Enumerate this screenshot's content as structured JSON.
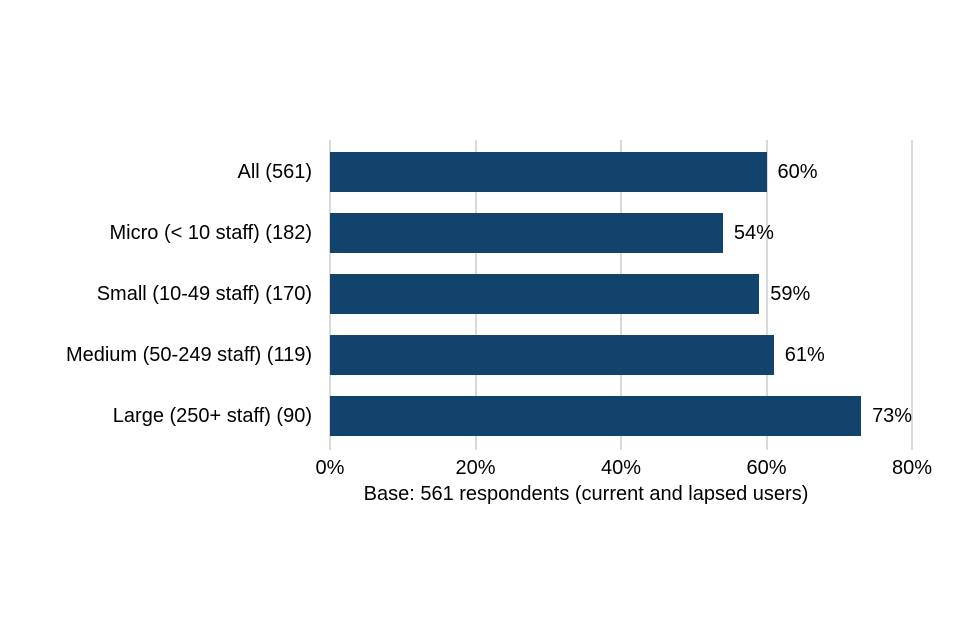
{
  "chart_data": {
    "type": "bar",
    "orientation": "horizontal",
    "title": "",
    "categories": [
      "All (561)",
      "Micro (< 10 staff) (182)",
      "Small (10-49 staff) (170)",
      "Medium (50-249 staff) (119)",
      "Large (250+ staff) (90)"
    ],
    "values": [
      60,
      54,
      59,
      61,
      73
    ],
    "value_labels": [
      "60%",
      "54%",
      "59%",
      "61%",
      "73%"
    ],
    "x_ticks": [
      {
        "value": 0,
        "label": "0%"
      },
      {
        "value": 20,
        "label": "20%"
      },
      {
        "value": 40,
        "label": "40%"
      },
      {
        "value": 60,
        "label": "60%"
      },
      {
        "value": 80,
        "label": "80%"
      }
    ],
    "xlim": [
      0,
      80
    ],
    "xlabel": "Base: 561 respondents (current and lapsed users)",
    "grid": "vertical-only",
    "legend": "none",
    "bar_color": "#12436d",
    "gridline_color": "#d9d9d9",
    "text_color": "#000000",
    "background_color": "#ffffff"
  }
}
